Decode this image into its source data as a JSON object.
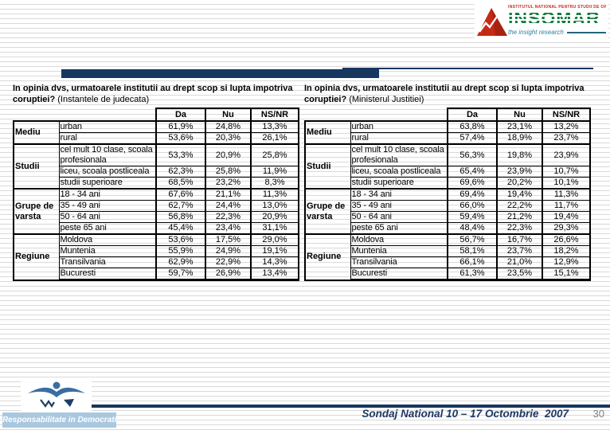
{
  "slide": {
    "footer_text": "Sondaj National 10 – 17 Octombrie  2007",
    "page_number": "30"
  },
  "logo_insomar": {
    "caption": "INSTITUTUL NATIONAL PENTRU STUDII DE OPINIE SI MARKETING",
    "name": "INSOMAR",
    "tagline": "the insight research"
  },
  "logo_footer": {
    "banner": "Responsabilitate in Democratie"
  },
  "colors": {
    "accent_navy": "#17375E",
    "stripe_gray": "#d9d9d9",
    "insomar_green": "#137A3F",
    "insomar_red": "#C62A16",
    "insomar_teal": "#2C7F9A",
    "banner_blue": "#a9c8e0",
    "footer_navy": "#1F3864",
    "page_gray": "#7f7f7f"
  },
  "tables": [
    {
      "title_bold": "In opinia dvs, urmatoarele institutii au drept scop si lupta impotriva coruptiei?",
      "title_normal": "(Instantele de judecata)",
      "columns": [
        "Da",
        "Nu",
        "NS/NR"
      ],
      "groups": [
        {
          "label": "Mediu",
          "rows": [
            {
              "category": "urban",
              "values": [
                "61,9%",
                "24,8%",
                "13,3%"
              ]
            },
            {
              "category": "rural",
              "values": [
                "53,6%",
                "20,3%",
                "26,1%"
              ]
            }
          ]
        },
        {
          "label": "Studii",
          "rows": [
            {
              "category": "cel mult 10 clase, scoala profesionala",
              "values": [
                "53,3%",
                "20,9%",
                "25,8%"
              ]
            },
            {
              "category": "liceu, scoala postliceala",
              "values": [
                "62,3%",
                "25,8%",
                "11,9%"
              ]
            },
            {
              "category": "studii superioare",
              "values": [
                "68,5%",
                "23,2%",
                "8,3%"
              ]
            }
          ]
        },
        {
          "label": "Grupe de varsta",
          "rows": [
            {
              "category": "18 - 34 ani",
              "values": [
                "67,6%",
                "21,1%",
                "11,3%"
              ]
            },
            {
              "category": "35 - 49 ani",
              "values": [
                "62,7%",
                "24,4%",
                "13,0%"
              ]
            },
            {
              "category": "50 - 64 ani",
              "values": [
                "56,8%",
                "22,3%",
                "20,9%"
              ]
            },
            {
              "category": "peste 65 ani",
              "values": [
                "45,4%",
                "23,4%",
                "31,1%"
              ]
            }
          ]
        },
        {
          "label": "Regiune",
          "rows": [
            {
              "category": "Moldova",
              "values": [
                "53,6%",
                "17,5%",
                "29,0%"
              ]
            },
            {
              "category": "Muntenia",
              "values": [
                "55,9%",
                "24,9%",
                "19,1%"
              ]
            },
            {
              "category": "Transilvania",
              "values": [
                "62,9%",
                "22,9%",
                "14,3%"
              ]
            },
            {
              "category": "Bucuresti",
              "values": [
                "59,7%",
                "26,9%",
                "13,4%"
              ]
            }
          ]
        }
      ]
    },
    {
      "title_bold": "In opinia dvs, urmatoarele institutii au drept scop si lupta impotriva coruptiei?",
      "title_normal": "(Ministerul Justitiei)",
      "columns": [
        "Da",
        "Nu",
        "NS/NR"
      ],
      "groups": [
        {
          "label": "Mediu",
          "rows": [
            {
              "category": "urban",
              "values": [
                "63,8%",
                "23,1%",
                "13,2%"
              ]
            },
            {
              "category": "rural",
              "values": [
                "57,4%",
                "18,9%",
                "23,7%"
              ]
            }
          ]
        },
        {
          "label": "Studii",
          "rows": [
            {
              "category": "cel mult 10 clase, scoala profesionala",
              "values": [
                "56,3%",
                "19,8%",
                "23,9%"
              ]
            },
            {
              "category": "liceu, scoala postliceala",
              "values": [
                "65,4%",
                "23,9%",
                "10,7%"
              ]
            },
            {
              "category": "studii superioare",
              "values": [
                "69,6%",
                "20,2%",
                "10,1%"
              ]
            }
          ]
        },
        {
          "label": "Grupe de varsta",
          "rows": [
            {
              "category": "18 - 34 ani",
              "values": [
                "69,4%",
                "19,4%",
                "11,3%"
              ]
            },
            {
              "category": "35 - 49 ani",
              "values": [
                "66,0%",
                "22,2%",
                "11,7%"
              ]
            },
            {
              "category": "50 - 64 ani",
              "values": [
                "59,4%",
                "21,2%",
                "19,4%"
              ]
            },
            {
              "category": "peste 65 ani",
              "values": [
                "48,4%",
                "22,3%",
                "29,3%"
              ]
            }
          ]
        },
        {
          "label": "Regiune",
          "rows": [
            {
              "category": "Moldova",
              "values": [
                "56,7%",
                "16,7%",
                "26,6%"
              ]
            },
            {
              "category": "Muntenia",
              "values": [
                "58,1%",
                "23,7%",
                "18,2%"
              ]
            },
            {
              "category": "Transilvania",
              "values": [
                "66,1%",
                "21,0%",
                "12,9%"
              ]
            },
            {
              "category": "Bucuresti",
              "values": [
                "61,3%",
                "23,5%",
                "15,1%"
              ]
            }
          ]
        }
      ]
    }
  ]
}
